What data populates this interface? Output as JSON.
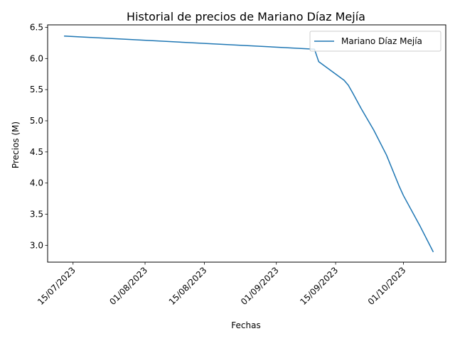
{
  "chart_data": {
    "type": "line",
    "title": "Historial de precios de Mariano Díaz Mejía",
    "xlabel": "Fechas",
    "ylabel": "Precios (M)",
    "x_type": "date",
    "xlim": [
      "2023-07-09",
      "2023-10-11"
    ],
    "ylim": [
      2.73,
      6.54
    ],
    "x_ticks": [
      {
        "date": "2023-07-15",
        "label": "15/07/2023"
      },
      {
        "date": "2023-08-01",
        "label": "01/08/2023"
      },
      {
        "date": "2023-08-15",
        "label": "15/08/2023"
      },
      {
        "date": "2023-09-01",
        "label": "01/09/2023"
      },
      {
        "date": "2023-09-15",
        "label": "15/09/2023"
      },
      {
        "date": "2023-10-01",
        "label": "01/10/2023"
      }
    ],
    "y_ticks": [
      3.0,
      3.5,
      4.0,
      4.5,
      5.0,
      5.5,
      6.0,
      6.5
    ],
    "y_tick_labels": [
      "3.0",
      "3.5",
      "4.0",
      "4.5",
      "5.0",
      "5.5",
      "6.0",
      "6.5"
    ],
    "grid": false,
    "legend": {
      "position": "top-right"
    },
    "series": [
      {
        "name": "Mariano Díaz Mejía",
        "color": "#1f77b4",
        "points": [
          {
            "x": "2023-07-13",
            "y": 6.36
          },
          {
            "x": "2023-09-10",
            "y": 6.15
          },
          {
            "x": "2023-09-11",
            "y": 5.95
          },
          {
            "x": "2023-09-12",
            "y": 5.9
          },
          {
            "x": "2023-09-15",
            "y": 5.75
          },
          {
            "x": "2023-09-17",
            "y": 5.65
          },
          {
            "x": "2023-09-18",
            "y": 5.57
          },
          {
            "x": "2023-09-19",
            "y": 5.45
          },
          {
            "x": "2023-09-21",
            "y": 5.2
          },
          {
            "x": "2023-09-24",
            "y": 4.85
          },
          {
            "x": "2023-09-27",
            "y": 4.45
          },
          {
            "x": "2023-09-30",
            "y": 3.95
          },
          {
            "x": "2023-10-01",
            "y": 3.8
          },
          {
            "x": "2023-10-05",
            "y": 3.3
          },
          {
            "x": "2023-10-08",
            "y": 2.9
          }
        ]
      }
    ]
  }
}
